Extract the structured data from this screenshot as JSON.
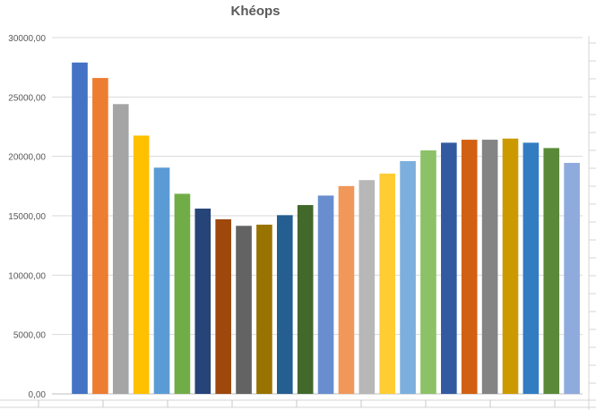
{
  "chart_data": {
    "type": "bar",
    "title": "Khéops",
    "xlabel": "",
    "ylabel": "",
    "ylim": [
      0,
      30000
    ],
    "grid": true,
    "legend": "none",
    "y_ticks": [
      "0,00",
      "5000,00",
      "10000,00",
      "15000,00",
      "20000,00",
      "25000,00",
      "30000,00"
    ],
    "y_tick_values": [
      0,
      5000,
      10000,
      15000,
      20000,
      25000,
      30000
    ],
    "values": [
      27900,
      26600,
      24400,
      21750,
      19050,
      16850,
      15600,
      14700,
      14150,
      14250,
      15050,
      15900,
      16700,
      17500,
      18000,
      18550,
      19600,
      20500,
      21150,
      21400,
      21400,
      21500,
      21150,
      20700,
      19450
    ],
    "colors": [
      "#4472C4",
      "#ED7D31",
      "#A5A5A5",
      "#FFC000",
      "#5B9BD5",
      "#70AD47",
      "#264478",
      "#9E480E",
      "#636363",
      "#997300",
      "#255E91",
      "#43682B",
      "#698ED0",
      "#F1975A",
      "#B7B7B7",
      "#FFCD33",
      "#7CAFDD",
      "#8CC168",
      "#335AA1",
      "#D26012",
      "#848484",
      "#CC9A00",
      "#327DC2",
      "#5A8A39",
      "#8FAADC"
    ]
  }
}
